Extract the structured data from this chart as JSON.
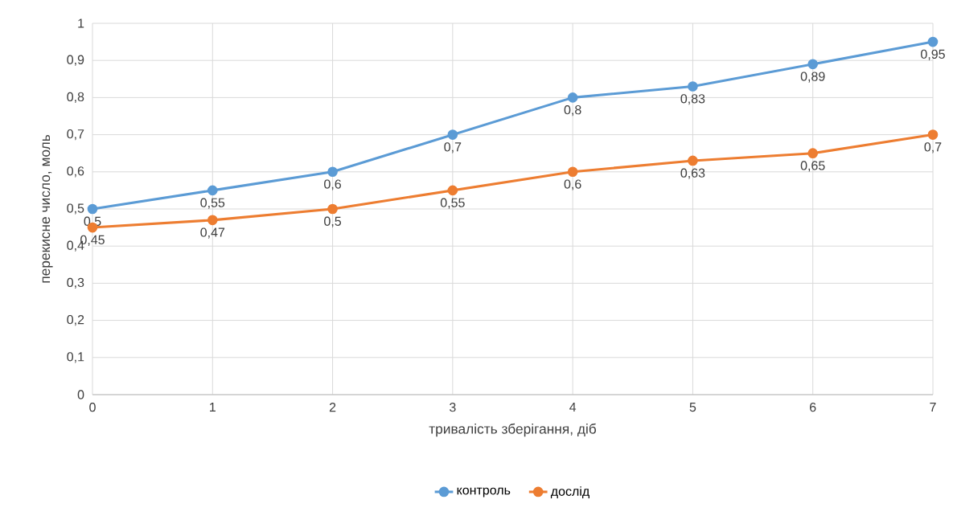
{
  "chart_data": {
    "type": "line",
    "xlabel": "тривалість зберігання, діб",
    "ylabel": "перекисне число, моль",
    "x": [
      0,
      1,
      2,
      3,
      4,
      5,
      6,
      7
    ],
    "series": [
      {
        "name": "контроль",
        "color": "#5b9bd5",
        "values": [
          0.5,
          0.55,
          0.6,
          0.7,
          0.8,
          0.83,
          0.89,
          0.95
        ],
        "value_labels": [
          "0,5",
          "0,55",
          "0,6",
          "0,7",
          "0,8",
          "0,83",
          "0,89",
          "0,95"
        ]
      },
      {
        "name": "дослід",
        "color": "#ed7d31",
        "values": [
          0.45,
          0.47,
          0.5,
          0.55,
          0.6,
          0.63,
          0.65,
          0.7
        ],
        "value_labels": [
          "0,45",
          "0,47",
          "0,5",
          "0,55",
          "0,6",
          "0,63",
          "0,65",
          "0,7"
        ]
      }
    ],
    "xlim": [
      0,
      7
    ],
    "xticks": [
      0,
      1,
      2,
      3,
      4,
      5,
      6,
      7
    ],
    "ylim": [
      0,
      1
    ],
    "yticks": [
      0,
      {
        "value": 0.1,
        "label": "0,1"
      },
      {
        "value": 0.2,
        "label": "0,2"
      },
      {
        "value": 0.3,
        "label": "0,3"
      },
      {
        "value": 0.4,
        "label": "0,4"
      },
      {
        "value": 0.5,
        "label": "0,5"
      },
      {
        "value": 0.6,
        "label": "0,6"
      },
      {
        "value": 0.7,
        "label": "0,7"
      },
      {
        "value": 0.8,
        "label": "0,8"
      },
      {
        "value": 0.9,
        "label": "0,9"
      },
      1
    ],
    "grid": true,
    "legend": "bottom",
    "marker": "circle",
    "line_style": "solid"
  }
}
